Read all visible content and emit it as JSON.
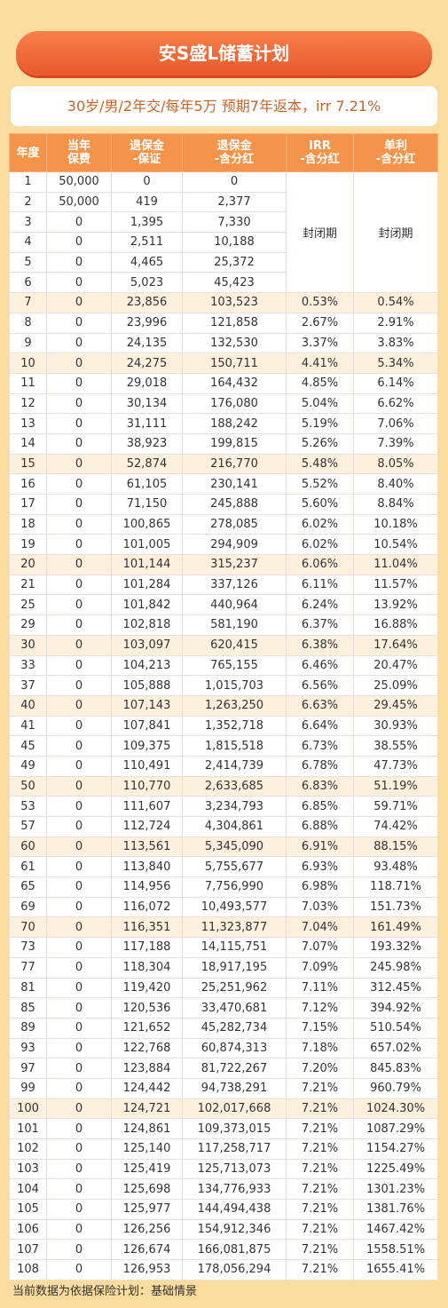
{
  "header": {
    "title": "安S盛L储蓄计划",
    "subtitle": "30岁/男/2年交/每年5万  预期7年返本，irr 7.21%"
  },
  "table": {
    "columns": [
      [
        "年度"
      ],
      [
        "当年",
        "保费"
      ],
      [
        "退保金",
        "-保证"
      ],
      [
        "退保金",
        "-含分红"
      ],
      [
        "IRR",
        "-含分红"
      ],
      [
        "单利",
        "-含分红"
      ]
    ],
    "closed_period": [
      "封闭期",
      "封闭期"
    ],
    "rows": [
      {
        "cells": [
          "1",
          "50,000",
          "0",
          "0"
        ]
      },
      {
        "cells": [
          "2",
          "50,000",
          "419",
          "2,377"
        ]
      },
      {
        "cells": [
          "3",
          "0",
          "1,395",
          "7,330"
        ]
      },
      {
        "cells": [
          "4",
          "0",
          "2,511",
          "10,188"
        ]
      },
      {
        "cells": [
          "5",
          "0",
          "4,465",
          "25,372"
        ]
      },
      {
        "cells": [
          "6",
          "0",
          "5,023",
          "45,423"
        ]
      },
      {
        "cells": [
          "7",
          "0",
          "23,856",
          "103,523",
          "0.53%",
          "0.54%"
        ],
        "highlight": true
      },
      {
        "cells": [
          "8",
          "0",
          "23,996",
          "121,858",
          "2.67%",
          "2.91%"
        ]
      },
      {
        "cells": [
          "9",
          "0",
          "24,135",
          "132,530",
          "3.37%",
          "3.83%"
        ]
      },
      {
        "cells": [
          "10",
          "0",
          "24,275",
          "150,711",
          "4.41%",
          "5.34%"
        ],
        "highlight": true
      },
      {
        "cells": [
          "11",
          "0",
          "29,018",
          "164,432",
          "4.85%",
          "6.14%"
        ]
      },
      {
        "cells": [
          "12",
          "0",
          "30,134",
          "176,080",
          "5.04%",
          "6.62%"
        ]
      },
      {
        "cells": [
          "13",
          "0",
          "31,111",
          "188,242",
          "5.19%",
          "7.06%"
        ]
      },
      {
        "cells": [
          "14",
          "0",
          "38,923",
          "199,815",
          "5.26%",
          "7.39%"
        ]
      },
      {
        "cells": [
          "15",
          "0",
          "52,874",
          "216,770",
          "5.48%",
          "8.05%"
        ],
        "highlight": true
      },
      {
        "cells": [
          "16",
          "0",
          "61,105",
          "230,141",
          "5.52%",
          "8.40%"
        ]
      },
      {
        "cells": [
          "17",
          "0",
          "71,150",
          "245,888",
          "5.60%",
          "8.84%"
        ]
      },
      {
        "cells": [
          "18",
          "0",
          "100,865",
          "278,085",
          "6.02%",
          "10.18%"
        ]
      },
      {
        "cells": [
          "19",
          "0",
          "101,005",
          "294,909",
          "6.02%",
          "10.54%"
        ]
      },
      {
        "cells": [
          "20",
          "0",
          "101,144",
          "315,237",
          "6.06%",
          "11.04%"
        ],
        "highlight": true
      },
      {
        "cells": [
          "21",
          "0",
          "101,284",
          "337,126",
          "6.11%",
          "11.57%"
        ]
      },
      {
        "cells": [
          "25",
          "0",
          "101,842",
          "440,964",
          "6.24%",
          "13.92%"
        ]
      },
      {
        "cells": [
          "29",
          "0",
          "102,818",
          "581,190",
          "6.37%",
          "16.88%"
        ]
      },
      {
        "cells": [
          "30",
          "0",
          "103,097",
          "620,415",
          "6.38%",
          "17.64%"
        ],
        "highlight": true
      },
      {
        "cells": [
          "33",
          "0",
          "104,213",
          "765,155",
          "6.46%",
          "20.47%"
        ]
      },
      {
        "cells": [
          "37",
          "0",
          "105,888",
          "1,015,703",
          "6.56%",
          "25.09%"
        ]
      },
      {
        "cells": [
          "40",
          "0",
          "107,143",
          "1,263,250",
          "6.63%",
          "29.45%"
        ],
        "highlight": true
      },
      {
        "cells": [
          "41",
          "0",
          "107,841",
          "1,352,718",
          "6.64%",
          "30.93%"
        ]
      },
      {
        "cells": [
          "45",
          "0",
          "109,375",
          "1,815,518",
          "6.73%",
          "38.55%"
        ]
      },
      {
        "cells": [
          "49",
          "0",
          "110,491",
          "2,414,739",
          "6.78%",
          "47.73%"
        ]
      },
      {
        "cells": [
          "50",
          "0",
          "110,770",
          "2,633,685",
          "6.83%",
          "51.19%"
        ],
        "highlight": true
      },
      {
        "cells": [
          "53",
          "0",
          "111,607",
          "3,234,793",
          "6.85%",
          "59.71%"
        ]
      },
      {
        "cells": [
          "57",
          "0",
          "112,724",
          "4,304,861",
          "6.88%",
          "74.42%"
        ]
      },
      {
        "cells": [
          "60",
          "0",
          "113,561",
          "5,345,090",
          "6.91%",
          "88.15%"
        ],
        "highlight": true
      },
      {
        "cells": [
          "61",
          "0",
          "113,840",
          "5,755,677",
          "6.93%",
          "93.48%"
        ]
      },
      {
        "cells": [
          "65",
          "0",
          "114,956",
          "7,756,990",
          "6.98%",
          "118.71%"
        ]
      },
      {
        "cells": [
          "69",
          "0",
          "116,072",
          "10,493,577",
          "7.03%",
          "151.73%"
        ]
      },
      {
        "cells": [
          "70",
          "0",
          "116,351",
          "11,323,877",
          "7.04%",
          "161.49%"
        ],
        "highlight": true
      },
      {
        "cells": [
          "73",
          "0",
          "117,188",
          "14,115,751",
          "7.07%",
          "193.32%"
        ]
      },
      {
        "cells": [
          "77",
          "0",
          "118,304",
          "18,917,195",
          "7.09%",
          "245.98%"
        ]
      },
      {
        "cells": [
          "81",
          "0",
          "119,420",
          "25,251,962",
          "7.11%",
          "312.45%"
        ]
      },
      {
        "cells": [
          "85",
          "0",
          "120,536",
          "33,470,681",
          "7.12%",
          "394.92%"
        ]
      },
      {
        "cells": [
          "89",
          "0",
          "121,652",
          "45,282,734",
          "7.15%",
          "510.54%"
        ]
      },
      {
        "cells": [
          "93",
          "0",
          "122,768",
          "60,874,313",
          "7.18%",
          "657.02%"
        ]
      },
      {
        "cells": [
          "97",
          "0",
          "123,884",
          "81,722,267",
          "7.20%",
          "845.83%"
        ]
      },
      {
        "cells": [
          "99",
          "0",
          "124,442",
          "94,738,291",
          "7.21%",
          "960.79%"
        ]
      },
      {
        "cells": [
          "100",
          "0",
          "124,721",
          "102,017,668",
          "7.21%",
          "1024.30%"
        ],
        "highlight": true
      },
      {
        "cells": [
          "101",
          "0",
          "124,861",
          "109,373,015",
          "7.21%",
          "1087.29%"
        ]
      },
      {
        "cells": [
          "102",
          "0",
          "125,140",
          "117,258,717",
          "7.21%",
          "1154.27%"
        ]
      },
      {
        "cells": [
          "103",
          "0",
          "125,419",
          "125,713,073",
          "7.21%",
          "1225.49%"
        ]
      },
      {
        "cells": [
          "104",
          "0",
          "125,698",
          "134,776,933",
          "7.21%",
          "1301.23%"
        ]
      },
      {
        "cells": [
          "105",
          "0",
          "125,977",
          "144,494,438",
          "7.21%",
          "1381.76%"
        ]
      },
      {
        "cells": [
          "106",
          "0",
          "126,256",
          "154,912,346",
          "7.21%",
          "1467.42%"
        ]
      },
      {
        "cells": [
          "107",
          "0",
          "126,674",
          "166,081,875",
          "7.21%",
          "1558.51%"
        ]
      },
      {
        "cells": [
          "108",
          "0",
          "126,953",
          "178,056,294",
          "7.21%",
          "1655.41%"
        ]
      }
    ]
  },
  "footer": {
    "note": "当前数据为依据保险计划：基础情景"
  }
}
